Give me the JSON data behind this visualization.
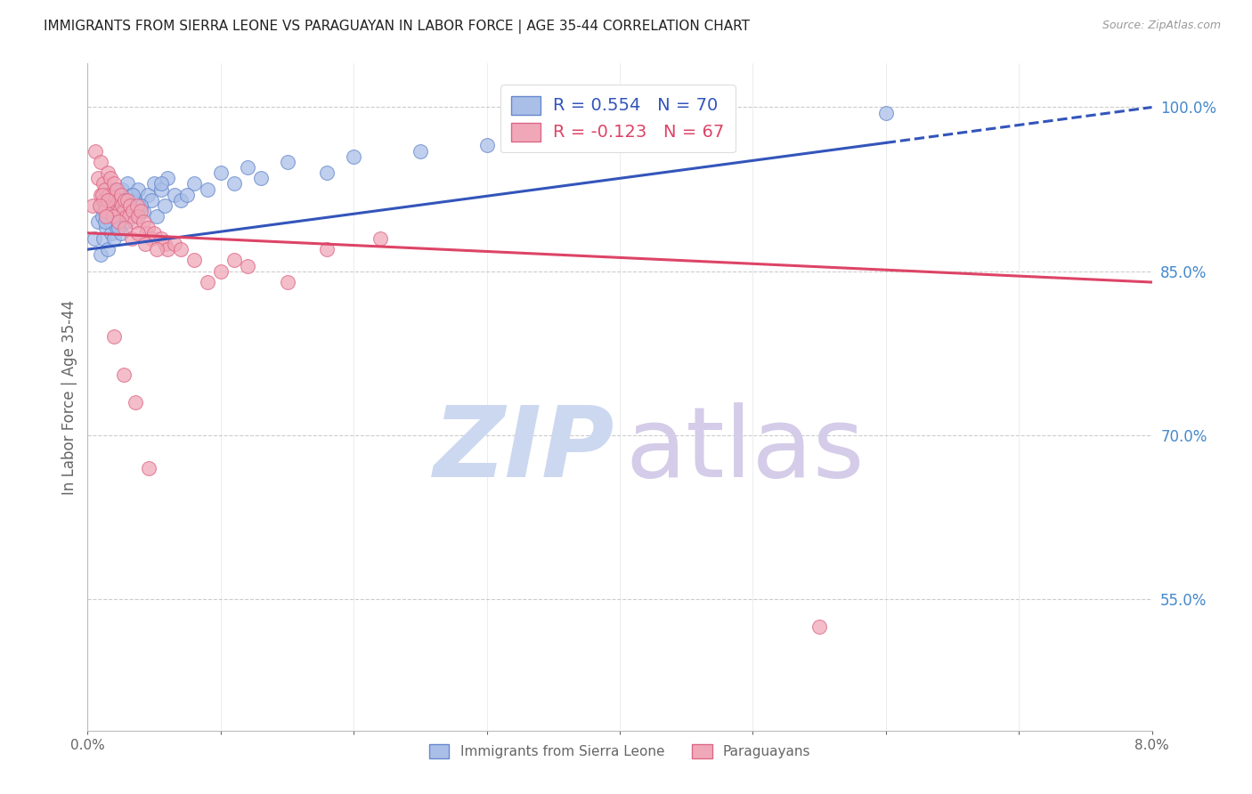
{
  "title": "IMMIGRANTS FROM SIERRA LEONE VS PARAGUAYAN IN LABOR FORCE | AGE 35-44 CORRELATION CHART",
  "source": "Source: ZipAtlas.com",
  "ylabel": "In Labor Force | Age 35-44",
  "yticks": [
    55.0,
    70.0,
    85.0,
    100.0
  ],
  "xlim": [
    0.0,
    8.0
  ],
  "ylim": [
    43.0,
    104.0
  ],
  "series1_label": "Immigrants from Sierra Leone",
  "series2_label": "Paraguayans",
  "series1_color": "#aabfe8",
  "series2_color": "#f0a8b8",
  "series1_edge": "#6688cc",
  "series2_edge": "#dd6688",
  "trendline1_color": "#3355bb",
  "trendline2_color": "#dd4466",
  "trendline1_R": 0.554,
  "trendline1_N": 70,
  "trendline2_R": -0.123,
  "trendline2_N": 67,
  "watermark_zip_color": "#ccd8f0",
  "watermark_atlas_color": "#d4cce8",
  "background_color": "#ffffff",
  "gridline_color": "#cccccc",
  "right_axis_color": "#4488cc",
  "axis_label_color": "#666666",
  "series1_x": [
    0.05,
    0.08,
    0.1,
    0.1,
    0.12,
    0.12,
    0.13,
    0.14,
    0.15,
    0.15,
    0.16,
    0.17,
    0.18,
    0.18,
    0.19,
    0.2,
    0.2,
    0.21,
    0.22,
    0.22,
    0.23,
    0.24,
    0.25,
    0.25,
    0.26,
    0.27,
    0.28,
    0.29,
    0.3,
    0.3,
    0.32,
    0.33,
    0.35,
    0.37,
    0.38,
    0.4,
    0.42,
    0.45,
    0.48,
    0.5,
    0.52,
    0.55,
    0.58,
    0.6,
    0.65,
    0.7,
    0.8,
    0.9,
    1.0,
    1.1,
    1.2,
    1.3,
    1.5,
    1.8,
    2.0,
    2.5,
    3.0,
    3.5,
    4.5,
    6.0,
    0.11,
    0.13,
    0.16,
    0.19,
    0.23,
    0.28,
    0.34,
    0.4,
    0.55,
    0.75
  ],
  "series1_y": [
    88.0,
    89.5,
    91.0,
    86.5,
    90.5,
    88.0,
    91.5,
    89.0,
    92.0,
    87.0,
    90.5,
    89.5,
    91.0,
    88.5,
    90.0,
    92.5,
    88.0,
    90.0,
    91.5,
    89.0,
    92.0,
    90.5,
    91.0,
    88.5,
    92.5,
    90.0,
    91.5,
    89.5,
    91.0,
    93.0,
    90.5,
    92.0,
    91.5,
    90.0,
    92.5,
    91.0,
    90.5,
    92.0,
    91.5,
    93.0,
    90.0,
    92.5,
    91.0,
    93.5,
    92.0,
    91.5,
    93.0,
    92.5,
    94.0,
    93.0,
    94.5,
    93.5,
    95.0,
    94.0,
    95.5,
    96.0,
    96.5,
    97.0,
    98.0,
    99.5,
    90.0,
    89.5,
    91.0,
    90.5,
    89.0,
    91.5,
    92.0,
    91.0,
    93.0,
    92.0
  ],
  "series2_x": [
    0.04,
    0.06,
    0.08,
    0.1,
    0.1,
    0.12,
    0.12,
    0.13,
    0.14,
    0.15,
    0.16,
    0.17,
    0.18,
    0.19,
    0.2,
    0.21,
    0.22,
    0.23,
    0.24,
    0.25,
    0.26,
    0.27,
    0.28,
    0.29,
    0.3,
    0.31,
    0.32,
    0.34,
    0.35,
    0.37,
    0.38,
    0.4,
    0.42,
    0.44,
    0.45,
    0.48,
    0.5,
    0.55,
    0.58,
    0.6,
    0.65,
    0.7,
    0.8,
    0.9,
    1.0,
    1.1,
    1.2,
    1.5,
    1.8,
    2.2,
    0.11,
    0.13,
    0.15,
    0.19,
    0.23,
    0.28,
    0.33,
    0.38,
    0.43,
    0.52,
    0.09,
    0.14,
    0.2,
    0.27,
    0.36,
    0.46,
    5.5
  ],
  "series2_y": [
    91.0,
    96.0,
    93.5,
    92.0,
    95.0,
    91.5,
    93.0,
    92.5,
    91.0,
    94.0,
    92.0,
    93.5,
    91.5,
    92.0,
    93.0,
    91.0,
    92.5,
    91.5,
    90.5,
    92.0,
    91.0,
    90.5,
    91.5,
    90.0,
    91.5,
    90.0,
    91.0,
    90.5,
    89.5,
    91.0,
    90.0,
    90.5,
    89.5,
    88.5,
    89.0,
    88.0,
    88.5,
    88.0,
    87.5,
    87.0,
    87.5,
    87.0,
    86.0,
    84.0,
    85.0,
    86.0,
    85.5,
    84.0,
    87.0,
    88.0,
    92.0,
    90.5,
    91.5,
    90.0,
    89.5,
    89.0,
    88.0,
    88.5,
    87.5,
    87.0,
    91.0,
    90.0,
    79.0,
    75.5,
    73.0,
    67.0,
    52.5
  ]
}
